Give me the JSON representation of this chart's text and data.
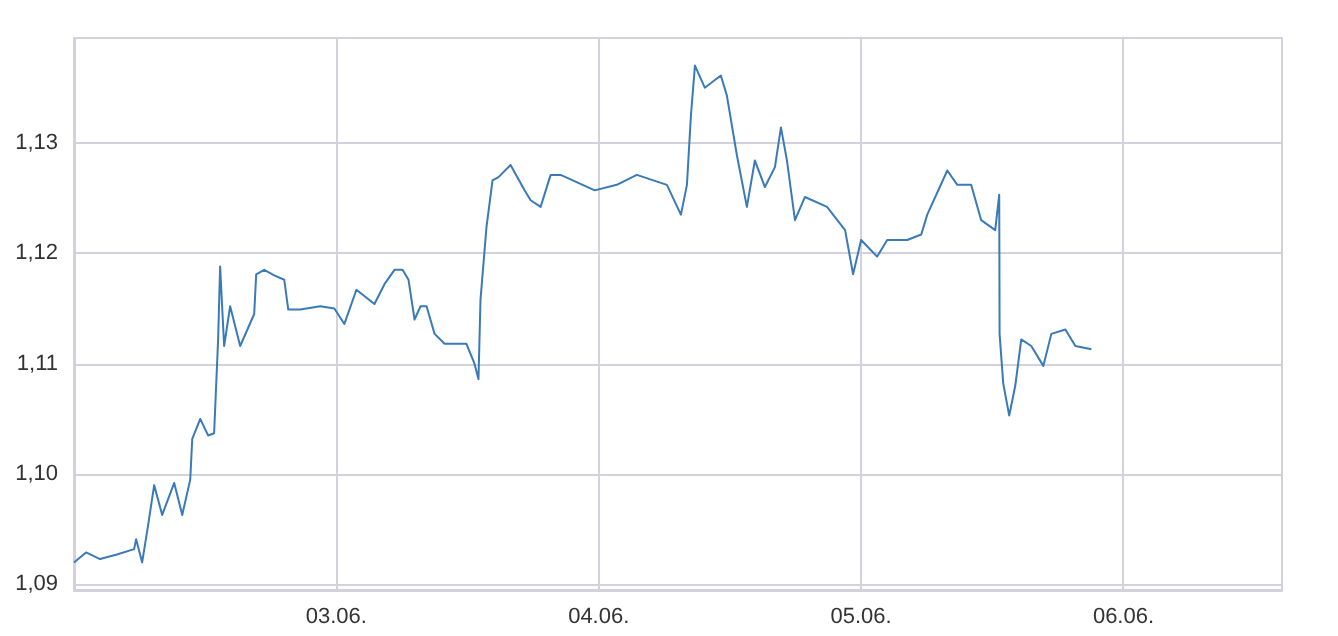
{
  "chart_data": {
    "type": "line",
    "grid": true,
    "marker": "none",
    "line_style": "solid",
    "xlim": [
      "--06-02",
      "--06-06T14:30"
    ],
    "xticks": [
      {
        "value": "--06-03",
        "label": "03.06."
      },
      {
        "value": "--06-04",
        "label": "04.06."
      },
      {
        "value": "--06-05",
        "label": "05.06."
      },
      {
        "value": "--06-06",
        "label": "06.06."
      }
    ],
    "ylim": [
      1.0895,
      1.1395
    ],
    "yticks": [
      {
        "value": 1.09,
        "label": "1,09"
      },
      {
        "value": 1.1,
        "label": "1,10"
      },
      {
        "value": 1.11,
        "label": "1,11"
      },
      {
        "value": 1.12,
        "label": "1,12"
      },
      {
        "value": 1.13,
        "label": "1,13"
      }
    ],
    "x": [
      "--06-02T00:00",
      "--06-02T01:06",
      "--06-02T02:23",
      "--06-02T03:51",
      "--06-02T05:30",
      "--06-02T05:41",
      "--06-02T06:14",
      "--06-02T06:47",
      "--06-02T07:20",
      "--06-02T08:04",
      "--06-02T09:10",
      "--06-02T09:54",
      "--06-02T10:38",
      "--06-02T10:49",
      "--06-02T11:33",
      "--06-02T12:16",
      "--06-02T12:49",
      "--06-02T13:11",
      "--06-02T13:22",
      "--06-02T13:44",
      "--06-02T14:17",
      "--06-02T15:12",
      "--06-02T16:29",
      "--06-02T16:40",
      "--06-02T17:24",
      "--06-02T18:19",
      "--06-02T19:14",
      "--06-02T19:36",
      "--06-02T20:42",
      "--06-02T22:32",
      "--06-02T23:49",
      "--06-03T00:44",
      "--06-03T01:50",
      "--06-03T03:29",
      "--06-03T04:24",
      "--06-03T05:19",
      "--06-03T06:03",
      "--06-03T06:36",
      "--06-03T07:09",
      "--06-03T07:42",
      "--06-03T08:15",
      "--06-03T08:59",
      "--06-03T09:54",
      "--06-03T11:54",
      "--06-03T12:38",
      "--06-03T13:00",
      "--06-03T13:11",
      "--06-03T13:44",
      "--06-03T14:17",
      "--06-03T14:50",
      "--06-03T15:56",
      "--06-03T17:13",
      "--06-03T17:46",
      "--06-03T18:41",
      "--06-03T19:36",
      "--06-03T20:31",
      "--06-03T23:38",
      "--06-04T01:39",
      "--06-04T03:29",
      "--06-04T06:14",
      "--06-04T07:31",
      "--06-04T08:04",
      "--06-04T08:26",
      "--06-04T08:48",
      "--06-04T09:42",
      "--06-04T11:10",
      "--06-04T11:43",
      "--06-04T12:38",
      "--06-04T13:33",
      "--06-04T14:17",
      "--06-04T15:12",
      "--06-04T16:07",
      "--06-04T16:40",
      "--06-04T17:13",
      "--06-04T17:57",
      "--06-04T18:52",
      "--06-04T20:53",
      "--06-04T22:32",
      "--06-04T23:16",
      "--06-05T00:00",
      "--06-05T01:28",
      "--06-05T02:23",
      "--06-05T04:13",
      "--06-05T05:30",
      "--06-05T06:03",
      "--06-05T07:53",
      "--06-05T08:48",
      "--06-05T10:04",
      "--06-05T10:59",
      "--06-05T12:16",
      "--06-05T12:38",
      "--06-05T12:40",
      "--06-05T13:00",
      "--06-05T13:33",
      "--06-05T14:06",
      "--06-05T14:39",
      "--06-05T15:34",
      "--06-05T16:40",
      "--06-05T17:24",
      "--06-05T18:41",
      "--06-05T19:36",
      "--06-05T21:04"
    ],
    "series": [
      {
        "color": "#3a7ab8",
        "values": [
          1.092,
          1.0929,
          1.0923,
          1.0927,
          1.0932,
          1.0941,
          1.092,
          1.0954,
          1.099,
          1.0963,
          1.0992,
          1.0963,
          1.0995,
          1.1032,
          1.105,
          1.1035,
          1.1037,
          1.1122,
          1.1188,
          1.1116,
          1.1152,
          1.1116,
          1.1145,
          1.1181,
          1.1185,
          1.118,
          1.1176,
          1.1149,
          1.1149,
          1.1152,
          1.115,
          1.1136,
          1.1167,
          1.1154,
          1.1172,
          1.1185,
          1.1185,
          1.1176,
          1.114,
          1.1152,
          1.1152,
          1.1127,
          1.1118,
          1.1118,
          1.11,
          1.1086,
          1.1158,
          1.1224,
          1.1266,
          1.1269,
          1.128,
          1.1257,
          1.1248,
          1.1242,
          1.1271,
          1.1271,
          1.1257,
          1.1262,
          1.1271,
          1.1262,
          1.1235,
          1.1262,
          1.1325,
          1.137,
          1.135,
          1.1361,
          1.1343,
          1.1289,
          1.1242,
          1.1284,
          1.126,
          1.1278,
          1.1314,
          1.1284,
          1.123,
          1.1251,
          1.1242,
          1.1221,
          1.1181,
          1.1212,
          1.1197,
          1.1212,
          1.1212,
          1.1217,
          1.1235,
          1.1275,
          1.1262,
          1.1262,
          1.123,
          1.1221,
          1.1253,
          1.1127,
          1.1082,
          1.1053,
          1.108,
          1.1122,
          1.1116,
          1.1098,
          1.1127,
          1.1131,
          1.1116,
          1.1113
        ]
      }
    ]
  }
}
